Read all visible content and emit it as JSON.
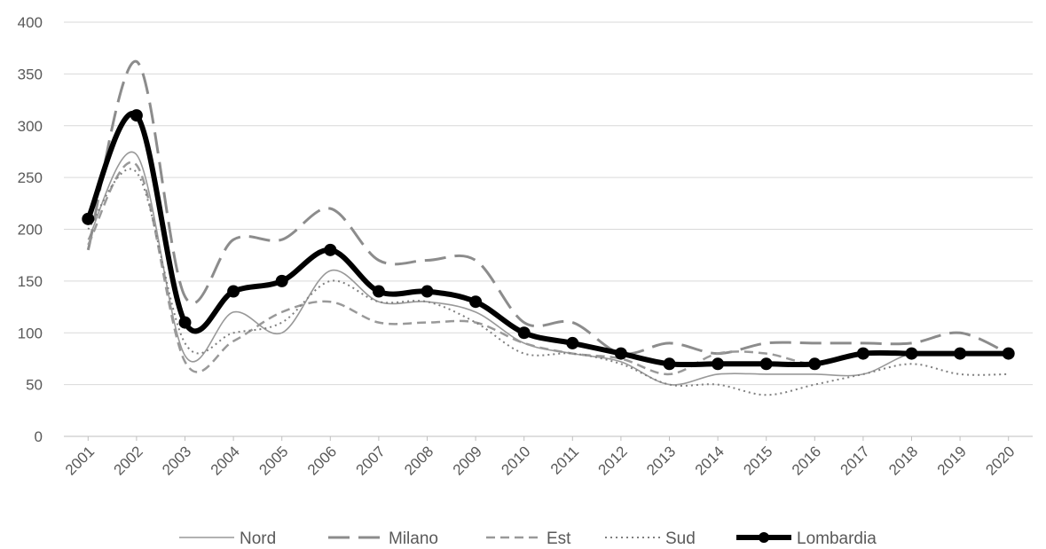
{
  "chart_data": {
    "type": "line",
    "title": "",
    "xlabel": "",
    "ylabel": "",
    "x": [
      "2001",
      "2002",
      "2003",
      "2004",
      "2005",
      "2006",
      "2007",
      "2008",
      "2009",
      "2010",
      "2011",
      "2012",
      "2013",
      "2014",
      "2015",
      "2016",
      "2017",
      "2018",
      "2019",
      "2020"
    ],
    "yticks": [
      "0",
      "50",
      "100",
      "150",
      "200",
      "250",
      "300",
      "350",
      "400"
    ],
    "ylim": [
      0,
      400
    ],
    "grid": true,
    "legend_position": "bottom",
    "series": [
      {
        "name": "Nord",
        "style": "solid-thin",
        "color": "#999999",
        "values": [
          190,
          272,
          78,
          120,
          100,
          160,
          130,
          130,
          120,
          90,
          80,
          72,
          50,
          60,
          60,
          60,
          60,
          80,
          80,
          80
        ]
      },
      {
        "name": "Milano",
        "style": "long-dash",
        "color": "#8c8c8c",
        "values": [
          180,
          362,
          135,
          190,
          190,
          220,
          170,
          170,
          170,
          110,
          110,
          80,
          90,
          80,
          90,
          90,
          90,
          90,
          100,
          80
        ]
      },
      {
        "name": "Est",
        "style": "short-dash",
        "color": "#999999",
        "values": [
          185,
          262,
          72,
          92,
          120,
          130,
          110,
          110,
          110,
          90,
          80,
          75,
          60,
          80,
          80,
          70,
          80,
          80,
          80,
          80
        ]
      },
      {
        "name": "Sud",
        "style": "dotted",
        "color": "#7f7f7f",
        "values": [
          200,
          255,
          90,
          100,
          110,
          150,
          130,
          130,
          110,
          80,
          80,
          70,
          50,
          50,
          40,
          50,
          60,
          70,
          60,
          60
        ]
      },
      {
        "name": "Lombardia",
        "style": "thick-markers",
        "color": "#000000",
        "values": [
          210,
          310,
          110,
          140,
          150,
          180,
          140,
          140,
          130,
          100,
          90,
          80,
          70,
          70,
          70,
          70,
          80,
          80,
          80,
          80
        ]
      }
    ]
  }
}
